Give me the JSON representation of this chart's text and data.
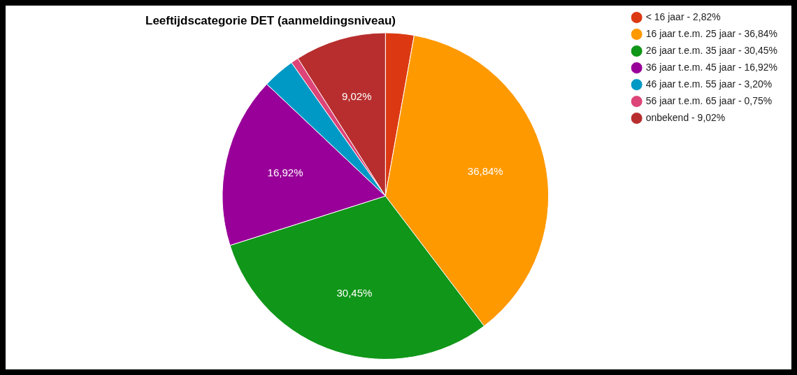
{
  "chart_data": {
    "type": "pie",
    "title": "Leeftijdscategorie DET (aanmeldingsniveau)",
    "categories": [
      "< 16 jaar - 2,82%",
      "16 jaar t.e.m. 25 jaar - 36,84%",
      "26 jaar t.e.m. 35 jaar - 30,45%",
      "36 jaar t.e.m. 45 jaar - 16,92%",
      "46 jaar t.e.m. 55 jaar - 3,20%",
      "56 jaar t.e.m. 65 jaar - 0,75%",
      "onbekend - 9,02%"
    ],
    "values": [
      2.82,
      36.84,
      30.45,
      16.92,
      3.2,
      0.75,
      9.02
    ],
    "colors": [
      "#dc3912",
      "#ff9900",
      "#109618",
      "#990099",
      "#0099c6",
      "#dd4477",
      "#b82e2e"
    ],
    "value_labels": [
      null,
      "36,84%",
      "30,45%",
      "16,92%",
      null,
      null,
      "9,02%"
    ],
    "legend": "top right"
  }
}
